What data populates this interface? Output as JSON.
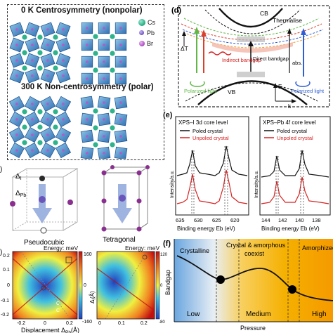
{
  "panel_a": {
    "title_top": "0 K Centrosymmetry (nonpolar)",
    "title_bottom": "300 K Non-centrosymmetry (polar)",
    "legend": [
      {
        "label": "Cs",
        "color": "#2fb38b"
      },
      {
        "label": "Pb",
        "color": "#7b63c9"
      },
      {
        "label": "Br",
        "color": "#b45ac8"
      }
    ]
  },
  "panel_c": {
    "label_delta_i": "Δ",
    "label_delta_i_sub": "I",
    "label_delta_pb": "Δ",
    "label_delta_pb_sub": "Pb",
    "caption_left": "Pseudocubic",
    "caption_right": "Tetragonal"
  },
  "panel_d": {
    "label": "(d)",
    "cb": "CB",
    "vb": "VB",
    "thermalise": "Thermalise",
    "delta_t": "ΔT",
    "polarized_left": "Polarized light",
    "polarized_right": "Polarized light",
    "indirect": "Indirect bandgap",
    "direct": "Direct bandgap",
    "abs": "abs.",
    "axis_e": "E",
    "axis_k": "k"
  },
  "panel_e": {
    "label": "(e)",
    "left_title": "XPS–I 3d core level",
    "right_title": "XPS–Pb 4f core level",
    "legend_poled": "Poled crystal",
    "legend_unpoled": "Unpoled crystal",
    "ylabel": "Intensity/a.u.",
    "xlabel": "Binding energy Eb (eV)",
    "left_ticks": [
      "635",
      "630",
      "625",
      "620"
    ],
    "right_ticks": [
      "144",
      "142",
      "140",
      "138"
    ],
    "poled_color": "#111111",
    "unpoled_color": "#d62020"
  },
  "panel_b": {
    "energy_label": "Energy: meV",
    "left_cbar": [
      "160",
      "0",
      "-160"
    ],
    "right_cbar": [
      "120",
      "0",
      "-80"
    ],
    "y_ticks": [
      "0.2",
      "0.1",
      "0",
      "-0.1",
      "-0.2"
    ],
    "left_x_ticks": [
      "-0.2",
      "0",
      "0.2"
    ],
    "right_x_ticks": [
      "0",
      "0.1",
      "0.2"
    ],
    "xlabel": "Displacement Δ",
    "xlabel_sub": "Pb",
    "xlabel_unit": "(Å)",
    "right_ylabel": "Δ",
    "right_ylabel_sub": "I",
    "right_ylabel_unit": "(Å)",
    "annot_1": "C",
    "annot_2": "C"
  },
  "panel_f": {
    "label": "(f)",
    "regions": [
      {
        "name": "Crystalline",
        "tag": "Low"
      },
      {
        "name": "Crystal & amorphous coexist",
        "tag": "Medium"
      },
      {
        "name": "Amorphized",
        "tag": "High"
      }
    ],
    "ylabel": "Bandgap",
    "xlabel": "Pressure"
  }
}
